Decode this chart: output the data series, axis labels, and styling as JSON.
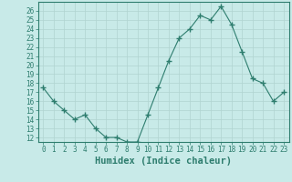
{
  "xlabel": "Humidex (Indice chaleur)",
  "x": [
    0,
    1,
    2,
    3,
    4,
    5,
    6,
    7,
    8,
    9,
    10,
    11,
    12,
    13,
    14,
    15,
    16,
    17,
    18,
    19,
    20,
    21,
    22,
    23
  ],
  "y": [
    17.5,
    16.0,
    15.0,
    14.0,
    14.5,
    13.0,
    12.0,
    12.0,
    11.5,
    11.5,
    14.5,
    17.5,
    20.5,
    23.0,
    24.0,
    25.5,
    25.0,
    26.5,
    24.5,
    21.5,
    18.5,
    18.0,
    16.0,
    17.0
  ],
  "line_color": "#2e7d6e",
  "marker": "+",
  "marker_size": 4,
  "bg_color": "#c8eae8",
  "grid_color": "#b0d4d0",
  "ylim": [
    11.5,
    27
  ],
  "xlim": [
    -0.5,
    23.5
  ],
  "yticks": [
    12,
    13,
    14,
    15,
    16,
    17,
    18,
    19,
    20,
    21,
    22,
    23,
    24,
    25,
    26
  ],
  "xticks": [
    0,
    1,
    2,
    3,
    4,
    5,
    6,
    7,
    8,
    9,
    10,
    11,
    12,
    13,
    14,
    15,
    16,
    17,
    18,
    19,
    20,
    21,
    22,
    23
  ],
  "tick_fontsize": 5.5,
  "label_fontsize": 7.5,
  "axis_color": "#2e7d6e",
  "spine_color": "#2e7d6e"
}
